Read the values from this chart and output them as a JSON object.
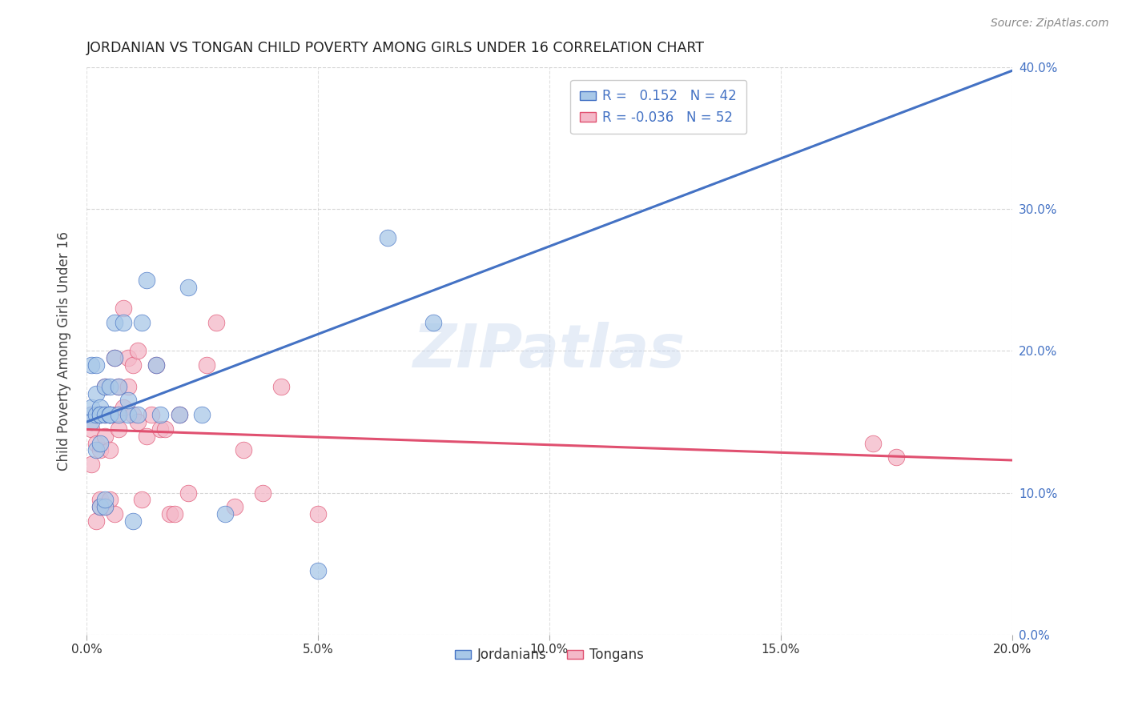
{
  "title": "JORDANIAN VS TONGAN CHILD POVERTY AMONG GIRLS UNDER 16 CORRELATION CHART",
  "source": "Source: ZipAtlas.com",
  "ylabel": "Child Poverty Among Girls Under 16",
  "xlim": [
    0.0,
    0.2
  ],
  "ylim": [
    0.0,
    0.4
  ],
  "xtick_vals": [
    0.0,
    0.05,
    0.1,
    0.15,
    0.2
  ],
  "xtick_labels": [
    "0.0%",
    "5.0%",
    "10.0%",
    "15.0%",
    "20.0%"
  ],
  "ytick_vals": [
    0.0,
    0.1,
    0.2,
    0.3,
    0.4
  ],
  "ytick_labels": [
    "0.0%",
    "10.0%",
    "20.0%",
    "30.0%",
    "40.0%"
  ],
  "jordanians": {
    "color": "#a8c8e8",
    "edge_color": "#4472c4",
    "x": [
      0.001,
      0.001,
      0.001,
      0.001,
      0.002,
      0.002,
      0.002,
      0.002,
      0.003,
      0.003,
      0.003,
      0.003,
      0.003,
      0.004,
      0.004,
      0.004,
      0.004,
      0.005,
      0.005,
      0.005,
      0.005,
      0.006,
      0.006,
      0.007,
      0.007,
      0.008,
      0.009,
      0.009,
      0.01,
      0.011,
      0.012,
      0.013,
      0.015,
      0.016,
      0.02,
      0.022,
      0.025,
      0.03,
      0.05,
      0.065,
      0.075,
      0.115
    ],
    "y": [
      0.155,
      0.16,
      0.15,
      0.19,
      0.13,
      0.155,
      0.17,
      0.19,
      0.16,
      0.155,
      0.155,
      0.135,
      0.09,
      0.155,
      0.175,
      0.09,
      0.095,
      0.155,
      0.175,
      0.155,
      0.155,
      0.195,
      0.22,
      0.155,
      0.175,
      0.22,
      0.155,
      0.165,
      0.08,
      0.155,
      0.22,
      0.25,
      0.19,
      0.155,
      0.155,
      0.245,
      0.155,
      0.085,
      0.045,
      0.28,
      0.22,
      0.36
    ]
  },
  "tongans": {
    "color": "#f4b8c8",
    "edge_color": "#e05070",
    "x": [
      0.001,
      0.001,
      0.001,
      0.002,
      0.002,
      0.002,
      0.002,
      0.003,
      0.003,
      0.003,
      0.003,
      0.004,
      0.004,
      0.004,
      0.004,
      0.005,
      0.005,
      0.005,
      0.005,
      0.006,
      0.006,
      0.006,
      0.007,
      0.007,
      0.007,
      0.008,
      0.008,
      0.009,
      0.009,
      0.01,
      0.01,
      0.011,
      0.011,
      0.012,
      0.013,
      0.014,
      0.015,
      0.016,
      0.017,
      0.018,
      0.019,
      0.02,
      0.022,
      0.026,
      0.028,
      0.032,
      0.034,
      0.038,
      0.042,
      0.05,
      0.17,
      0.175
    ],
    "y": [
      0.155,
      0.145,
      0.12,
      0.155,
      0.155,
      0.135,
      0.08,
      0.155,
      0.13,
      0.095,
      0.09,
      0.175,
      0.155,
      0.14,
      0.09,
      0.155,
      0.13,
      0.155,
      0.095,
      0.195,
      0.155,
      0.085,
      0.175,
      0.155,
      0.145,
      0.16,
      0.23,
      0.175,
      0.195,
      0.155,
      0.19,
      0.2,
      0.15,
      0.095,
      0.14,
      0.155,
      0.19,
      0.145,
      0.145,
      0.085,
      0.085,
      0.155,
      0.1,
      0.19,
      0.22,
      0.09,
      0.13,
      0.1,
      0.175,
      0.085,
      0.135,
      0.125
    ]
  },
  "watermark": "ZIPatlas",
  "background_color": "#ffffff",
  "grid_color": "#cccccc",
  "title_color": "#222222",
  "axis_label_color": "#444444",
  "right_tick_color": "#4472c4",
  "legend_r_blue": "R =   0.152   N = 42",
  "legend_r_pink": "R = -0.036   N = 52"
}
